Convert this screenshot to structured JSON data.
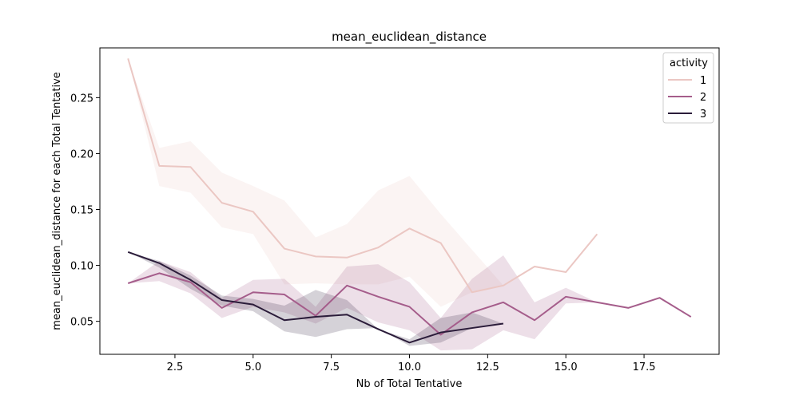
{
  "chart_data": {
    "type": "line",
    "title": "mean_euclidean_distance",
    "xlabel": "Nb of Total Tentative",
    "ylabel": "mean_euclidean_distance for each Total Tentative",
    "xlim": [
      0.1,
      19.9
    ],
    "ylim": [
      0.0205,
      0.2945
    ],
    "xticks": [
      2.5,
      5.0,
      7.5,
      10.0,
      12.5,
      15.0,
      17.5
    ],
    "xtick_labels": [
      "2.5",
      "5.0",
      "7.5",
      "10.0",
      "12.5",
      "15.0",
      "17.5"
    ],
    "yticks": [
      0.05,
      0.1,
      0.15,
      0.2,
      0.25
    ],
    "ytick_labels": [
      "0.05",
      "0.10",
      "0.15",
      "0.20",
      "0.25"
    ],
    "grid": false,
    "legend": {
      "title": "activity",
      "position": "top-right"
    },
    "series": [
      {
        "name": "1",
        "color": "#ebc7c3",
        "x": [
          1,
          2,
          3,
          4,
          5,
          6,
          7,
          8,
          9,
          10,
          11,
          12,
          13,
          14,
          15,
          16
        ],
        "y": [
          0.285,
          0.189,
          0.188,
          0.156,
          0.148,
          0.115,
          0.108,
          0.107,
          0.116,
          0.133,
          0.12,
          0.076,
          0.082,
          0.099,
          0.094,
          0.128
        ],
        "band_lower": [
          0.285,
          0.171,
          0.165,
          0.134,
          0.128,
          0.083,
          0.084,
          0.083,
          0.083,
          0.09,
          0.063,
          0.076,
          0.082,
          0.099,
          0.094,
          0.128
        ],
        "band_upper": [
          0.285,
          0.205,
          0.211,
          0.183,
          0.171,
          0.158,
          0.125,
          0.137,
          0.167,
          0.18,
          0.146,
          0.114,
          0.082,
          0.099,
          0.094,
          0.128
        ]
      },
      {
        "name": "2",
        "color": "#a55d8b",
        "x": [
          1,
          2,
          3,
          4,
          5,
          6,
          7,
          8,
          9,
          10,
          11,
          12,
          13,
          14,
          15,
          16,
          17,
          18,
          19
        ],
        "y": [
          0.084,
          0.093,
          0.085,
          0.062,
          0.076,
          0.074,
          0.055,
          0.082,
          0.072,
          0.063,
          0.038,
          0.058,
          0.067,
          0.051,
          0.072,
          0.067,
          0.062,
          0.071,
          0.054
        ],
        "band_lower": [
          0.084,
          0.086,
          0.075,
          0.053,
          0.063,
          0.058,
          0.048,
          0.062,
          0.049,
          0.042,
          0.024,
          0.025,
          0.042,
          0.034,
          0.066,
          0.067,
          0.062,
          0.071,
          0.054
        ],
        "band_upper": [
          0.084,
          0.104,
          0.094,
          0.071,
          0.087,
          0.088,
          0.063,
          0.099,
          0.101,
          0.085,
          0.053,
          0.088,
          0.109,
          0.067,
          0.08,
          0.067,
          0.062,
          0.071,
          0.054
        ]
      },
      {
        "name": "3",
        "color": "#2b1c3a",
        "x": [
          1,
          2,
          3,
          4,
          5,
          6,
          7,
          8,
          9,
          10,
          11,
          12,
          13
        ],
        "y": [
          0.112,
          0.102,
          0.087,
          0.069,
          0.065,
          0.051,
          0.054,
          0.056,
          0.043,
          0.031,
          0.04,
          0.044,
          0.048
        ],
        "band_lower": [
          0.112,
          0.098,
          0.079,
          0.064,
          0.059,
          0.041,
          0.036,
          0.043,
          0.044,
          0.028,
          0.031,
          0.044,
          0.048
        ],
        "band_upper": [
          0.112,
          0.104,
          0.091,
          0.073,
          0.07,
          0.064,
          0.078,
          0.069,
          0.043,
          0.034,
          0.053,
          0.058,
          0.048
        ]
      }
    ]
  }
}
